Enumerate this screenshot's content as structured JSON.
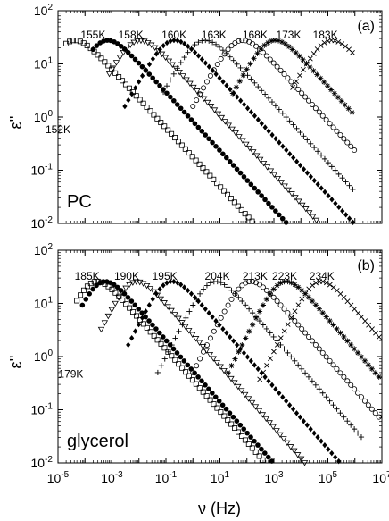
{
  "figure": {
    "xlabel": "ν (Hz)",
    "ylabel": "ε''"
  },
  "chart_data": [
    {
      "type": "scatter",
      "panel_label": "(a)",
      "sample_label": "PC",
      "xscale": "log",
      "yscale": "log",
      "xlim": [
        1e-05,
        10000000.0
      ],
      "ylim": [
        0.01,
        100
      ],
      "x_ticks": [
        "10-5",
        "10-3",
        "10-1",
        "101",
        "103",
        "105",
        "107"
      ],
      "y_ticks": [
        "10-2",
        "10-1",
        "100",
        "101",
        "102"
      ],
      "ylabel": "ε''",
      "grid": false,
      "series": [
        {
          "name": "152K",
          "marker": "square-open",
          "peak_nu": 3e-05,
          "peak_eps": 27,
          "fwhm_dec": 2.5,
          "beta": 0.55,
          "left_slope": 0.9,
          "x_start": 2e-05,
          "x_end": 1000000.0,
          "x_step": 0.13
        },
        {
          "name": "155K",
          "marker": "circle-filled",
          "peak_nu": 0.0005,
          "peak_eps": 27,
          "fwhm_dec": 2.0,
          "beta": 0.55,
          "left_slope": 0.9,
          "x_start": 0.0002,
          "x_end": 1000000.0,
          "x_step": 0.13
        },
        {
          "name": "158K",
          "marker": "triangle-down-open",
          "peak_nu": 0.008,
          "peak_eps": 27,
          "fwhm_dec": 2.0,
          "beta": 0.55,
          "left_slope": 0.9,
          "x_start": 0.0008,
          "x_end": 1000000.0,
          "x_step": 0.13
        },
        {
          "name": "160K",
          "marker": "diamond-filled",
          "peak_nu": 0.15,
          "peak_eps": 27,
          "fwhm_dec": 2.0,
          "beta": 0.55,
          "left_slope": 0.9,
          "x_start": 0.003,
          "x_end": 1000000.0,
          "x_step": 0.13
        },
        {
          "name": "163K",
          "marker": "plus",
          "peak_nu": 2.0,
          "peak_eps": 27,
          "fwhm_dec": 2.0,
          "beta": 0.55,
          "left_slope": 0.9,
          "x_start": 0.08,
          "x_end": 1000000.0,
          "x_step": 0.13
        },
        {
          "name": "168K",
          "marker": "circle-open",
          "peak_nu": 50.0,
          "peak_eps": 27,
          "fwhm_dec": 2.0,
          "beta": 0.55,
          "left_slope": 0.9,
          "x_start": 1.0,
          "x_end": 1000000.0,
          "x_step": 0.13
        },
        {
          "name": "173K",
          "marker": "asterisk",
          "peak_nu": 800.0,
          "peak_eps": 27,
          "fwhm_dec": 2.0,
          "beta": 0.55,
          "left_slope": 0.9,
          "x_start": 30.0,
          "x_end": 1000000.0,
          "x_step": 0.13
        },
        {
          "name": "183K",
          "marker": "x",
          "peak_nu": 100000.0,
          "peak_eps": 27,
          "fwhm_dec": 2.0,
          "beta": 0.55,
          "left_slope": 0.9,
          "x_start": 5000.0,
          "x_end": 1000000.0,
          "x_step": 0.13
        }
      ],
      "annotations": [
        {
          "text": "155K",
          "x": 0.0002,
          "y": 30
        },
        {
          "text": "158K",
          "x": 0.005,
          "y": 30
        },
        {
          "text": "160K",
          "x": 0.2,
          "y": 30
        },
        {
          "text": "163K",
          "x": 6,
          "y": 30
        },
        {
          "text": "168K",
          "x": 200,
          "y": 30
        },
        {
          "text": "173K",
          "x": 3500,
          "y": 30
        },
        {
          "text": "183K",
          "x": 80000,
          "y": 30
        },
        {
          "text": "152K",
          "x": 1e-05,
          "y": 0.5
        }
      ]
    },
    {
      "type": "scatter",
      "panel_label": "(b)",
      "sample_label": "glycerol",
      "xscale": "log",
      "yscale": "log",
      "xlim": [
        1e-05,
        10000000.0
      ],
      "ylim": [
        0.01,
        100
      ],
      "x_ticks": [
        "10-5",
        "10-3",
        "10-1",
        "101",
        "103",
        "105",
        "107"
      ],
      "y_ticks": [
        "10-2",
        "10-1",
        "100",
        "101",
        "102"
      ],
      "ylabel": "ε''",
      "grid": false,
      "series": [
        {
          "name": "179K",
          "marker": "square-open",
          "peak_nu": 0.0002,
          "peak_eps": 25,
          "fwhm_dec": 2.6,
          "beta": 0.58,
          "left_slope": 1.0,
          "x_start": 5e-05,
          "x_end": 1000000.0,
          "x_step": 0.13
        },
        {
          "name": "185K",
          "marker": "circle-filled",
          "peak_nu": 0.0004,
          "peak_eps": 25,
          "fwhm_dec": 2.2,
          "beta": 0.58,
          "left_slope": 1.0,
          "x_start": 8e-05,
          "x_end": 1000000.0,
          "x_step": 0.13
        },
        {
          "name": "190K",
          "marker": "triangle-down-open",
          "peak_nu": 0.006,
          "peak_eps": 25,
          "fwhm_dec": 2.2,
          "beta": 0.58,
          "left_slope": 1.0,
          "x_start": 0.0004,
          "x_end": 1000000.0,
          "x_step": 0.13
        },
        {
          "name": "195K",
          "marker": "diamond-filled",
          "peak_nu": 0.12,
          "peak_eps": 25,
          "fwhm_dec": 2.2,
          "beta": 0.58,
          "left_slope": 1.0,
          "x_start": 0.004,
          "x_end": 5000000.0,
          "x_step": 0.13
        },
        {
          "name": "204K",
          "marker": "plus",
          "peak_nu": 5.0,
          "peak_eps": 25,
          "fwhm_dec": 2.2,
          "beta": 0.58,
          "left_slope": 1.0,
          "x_start": 0.05,
          "x_end": 2000000.0,
          "x_step": 0.13
        },
        {
          "name": "213K",
          "marker": "circle-open",
          "peak_nu": 100.0,
          "peak_eps": 25,
          "fwhm_dec": 2.2,
          "beta": 0.58,
          "left_slope": 1.0,
          "x_start": 1.0,
          "x_end": 10000000.0,
          "x_step": 0.13
        },
        {
          "name": "223K",
          "marker": "asterisk",
          "peak_nu": 2000.0,
          "peak_eps": 25,
          "fwhm_dec": 2.2,
          "beta": 0.58,
          "left_slope": 1.0,
          "x_start": 20.0,
          "x_end": 10000000.0,
          "x_step": 0.13
        },
        {
          "name": "234K",
          "marker": "x",
          "peak_nu": 40000.0,
          "peak_eps": 25,
          "fwhm_dec": 2.2,
          "beta": 0.58,
          "left_slope": 1.0,
          "x_start": 300.0,
          "x_end": 10000000.0,
          "x_step": 0.13
        }
      ],
      "annotations": [
        {
          "text": "185K",
          "x": 0.00012,
          "y": 28
        },
        {
          "text": "190K",
          "x": 0.0035,
          "y": 28
        },
        {
          "text": "195K",
          "x": 0.09,
          "y": 28
        },
        {
          "text": "204K",
          "x": 8,
          "y": 28
        },
        {
          "text": "213K",
          "x": 200,
          "y": 28
        },
        {
          "text": "223K",
          "x": 2500,
          "y": 28
        },
        {
          "text": "234K",
          "x": 60000,
          "y": 28
        },
        {
          "text": "179K",
          "x": 3e-05,
          "y": 0.4
        }
      ]
    }
  ]
}
